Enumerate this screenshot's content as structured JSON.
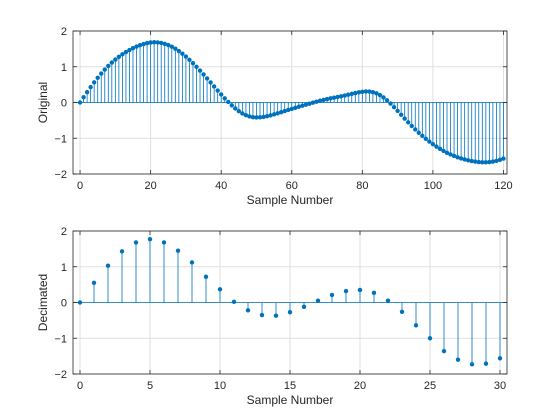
{
  "chart_data": [
    {
      "type": "stem",
      "id": "original",
      "xlabel": "Sample Number",
      "ylabel": "Original",
      "xlim": [
        -2,
        121
      ],
      "ylim": [
        -2,
        2
      ],
      "xticks": [
        0,
        20,
        40,
        60,
        80,
        100,
        120
      ],
      "yticks": [
        -2,
        -1,
        0,
        1,
        2
      ],
      "grid": true,
      "color": "#0072bd",
      "x_start": 0,
      "x_step": 1,
      "y": [
        0.0,
        0.147,
        0.29,
        0.43,
        0.563,
        0.69,
        0.809,
        0.92,
        1.022,
        1.116,
        1.201,
        1.278,
        1.347,
        1.41,
        1.467,
        1.518,
        1.564,
        1.603,
        1.636,
        1.661,
        1.678,
        1.685,
        1.681,
        1.667,
        1.642,
        1.607,
        1.561,
        1.505,
        1.44,
        1.366,
        1.284,
        1.195,
        1.1,
        0.999,
        0.894,
        0.785,
        0.674,
        0.561,
        0.448,
        0.335,
        0.225,
        0.118,
        0.016,
        -0.08,
        -0.167,
        -0.243,
        -0.306,
        -0.354,
        -0.389,
        -0.41,
        -0.418,
        -0.415,
        -0.403,
        -0.384,
        -0.36,
        -0.332,
        -0.302,
        -0.271,
        -0.24,
        -0.209,
        -0.179,
        -0.149,
        -0.119,
        -0.09,
        -0.061,
        -0.032,
        -0.004,
        0.023,
        0.049,
        0.073,
        0.095,
        0.116,
        0.136,
        0.155,
        0.174,
        0.195,
        0.218,
        0.241,
        0.264,
        0.285,
        0.3,
        0.308,
        0.305,
        0.288,
        0.256,
        0.207,
        0.142,
        0.062,
        -0.03,
        -0.13,
        -0.236,
        -0.344,
        -0.451,
        -0.556,
        -0.657,
        -0.754,
        -0.846,
        -0.933,
        -1.015,
        -1.093,
        -1.166,
        -1.234,
        -1.297,
        -1.355,
        -1.407,
        -1.454,
        -1.496,
        -1.533,
        -1.565,
        -1.593,
        -1.617,
        -1.638,
        -1.654,
        -1.666,
        -1.672,
        -1.673,
        -1.667,
        -1.654,
        -1.633,
        -1.604,
        -1.567
      ]
    },
    {
      "type": "stem",
      "id": "decimated",
      "xlabel": "Sample Number",
      "ylabel": "Decimated",
      "xlim": [
        -0.5,
        30.5
      ],
      "ylim": [
        -2,
        2
      ],
      "xticks": [
        0,
        5,
        10,
        15,
        20,
        25,
        30
      ],
      "yticks": [
        -2,
        -1,
        0,
        1,
        2
      ],
      "grid": true,
      "color": "#0072bd",
      "x_start": 0,
      "x_step": 1,
      "y": [
        0.0,
        0.55,
        1.03,
        1.43,
        1.68,
        1.77,
        1.68,
        1.45,
        1.12,
        0.72,
        0.37,
        0.02,
        -0.22,
        -0.35,
        -0.37,
        -0.27,
        -0.12,
        0.05,
        0.21,
        0.32,
        0.35,
        0.27,
        0.05,
        -0.26,
        -0.64,
        -1.0,
        -1.36,
        -1.6,
        -1.73,
        -1.71,
        -1.56
      ]
    }
  ]
}
